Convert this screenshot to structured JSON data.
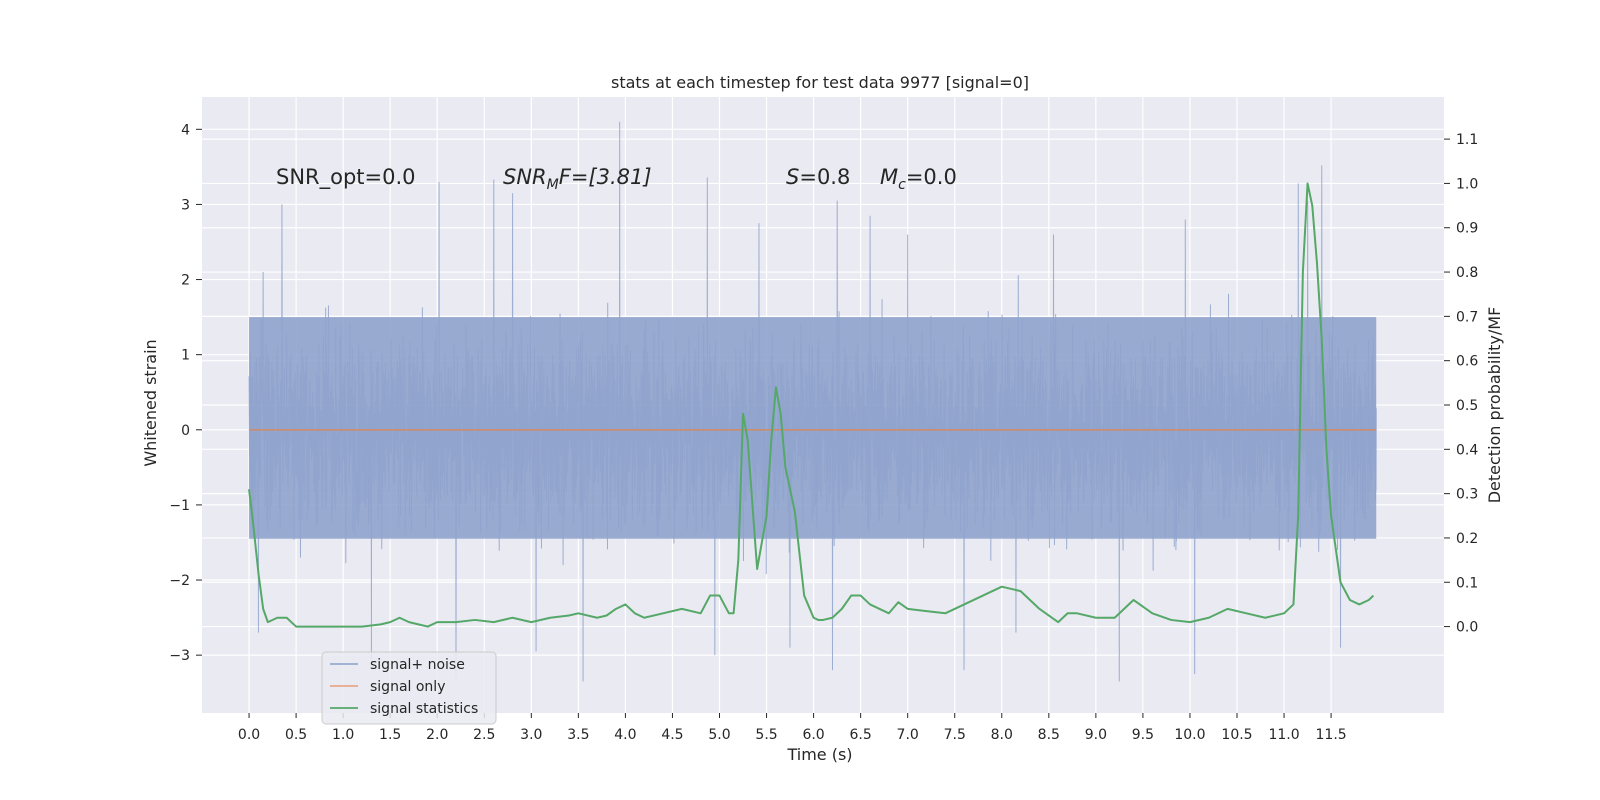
{
  "chart_data": {
    "type": "line",
    "title": "stats at each timestep for test data 9977 [signal=0]",
    "xlabel": "Time (s)",
    "ylabel": "Whitened strain",
    "y2label": "Detection probability/MF",
    "xlim": [
      -0.5,
      12.7
    ],
    "ylim": [
      -3.77,
      4.43
    ],
    "y2lim": [
      -0.195,
      1.195
    ],
    "grid": true,
    "xticks": [
      "0.0",
      "0.5",
      "1.0",
      "1.5",
      "2.0",
      "2.5",
      "3.0",
      "3.5",
      "4.0",
      "4.5",
      "5.0",
      "5.5",
      "6.0",
      "6.5",
      "7.0",
      "7.5",
      "8.0",
      "8.5",
      "9.0",
      "9.5",
      "10.0",
      "10.5",
      "11.0",
      "11.5"
    ],
    "yticks": [
      "4",
      "3",
      "2",
      "1",
      "0",
      "−1",
      "−2",
      "−3"
    ],
    "y2ticks": [
      "1.1",
      "1.0",
      "0.9",
      "0.8",
      "0.7",
      "0.6",
      "0.5",
      "0.4",
      "0.3",
      "0.2",
      "0.1",
      "0.0"
    ],
    "annotations": [
      {
        "id": "snr-opt",
        "text": "SNR_opt=0.0"
      },
      {
        "id": "snr-mf",
        "base": "SNR",
        "sub": "M",
        "rest": "F=[3.81]"
      },
      {
        "id": "s-stat",
        "base": "S",
        "rest": "=0.8"
      },
      {
        "id": "mc",
        "base": "M",
        "sub": "c",
        "rest": "=0.0"
      }
    ],
    "legend": {
      "position": "lower-left",
      "entries": [
        {
          "label": "signal+ noise",
          "color": "#97aad0"
        },
        {
          "label": "signal only",
          "color": "#e9a78a"
        },
        {
          "label": "signal statistics",
          "color": "#55a868"
        }
      ]
    },
    "series": [
      {
        "name": "signal+ noise",
        "color": "#8fa3cc",
        "description": "whitened noise, 12 s at dense sampling",
        "x_range": [
          0.0,
          11.98
        ],
        "core_band": [
          -1.45,
          1.5
        ],
        "min": -3.35,
        "max": 4.1,
        "spikes": [
          {
            "x": 3.94,
            "y": 4.1
          },
          {
            "x": 11.4,
            "y": 3.52
          },
          {
            "x": 2.6,
            "y": 3.33
          },
          {
            "x": 11.15,
            "y": 3.28
          },
          {
            "x": 4.87,
            "y": 3.36
          },
          {
            "x": 2.02,
            "y": 3.3
          },
          {
            "x": 0.35,
            "y": 3.0
          },
          {
            "x": 2.8,
            "y": 3.15
          },
          {
            "x": 11.25,
            "y": 3.05
          },
          {
            "x": 6.25,
            "y": 3.05
          },
          {
            "x": 6.6,
            "y": 2.85
          },
          {
            "x": 5.42,
            "y": 2.75
          },
          {
            "x": 7.0,
            "y": 2.6
          },
          {
            "x": 9.95,
            "y": 2.8
          },
          {
            "x": 8.55,
            "y": 2.6
          },
          {
            "x": 3.55,
            "y": -3.35
          },
          {
            "x": 10.05,
            "y": -3.25
          },
          {
            "x": 9.25,
            "y": -3.35
          },
          {
            "x": 1.3,
            "y": -3.05
          },
          {
            "x": 2.2,
            "y": -3.3
          },
          {
            "x": 6.2,
            "y": -3.2
          },
          {
            "x": 7.6,
            "y": -3.2
          },
          {
            "x": 11.6,
            "y": -2.9
          },
          {
            "x": 5.75,
            "y": -2.9
          },
          {
            "x": 4.95,
            "y": -3.0
          },
          {
            "x": 3.05,
            "y": -2.95
          },
          {
            "x": 8.15,
            "y": -2.7
          },
          {
            "x": 0.1,
            "y": -2.7
          },
          {
            "x": 0.15,
            "y": 2.1
          }
        ]
      },
      {
        "name": "signal only",
        "color": "#dd8452",
        "x": [
          0.0,
          11.98
        ],
        "y": [
          0.0,
          0.0
        ]
      },
      {
        "name": "signal statistics",
        "color": "#55a868",
        "axis": "right",
        "x": [
          0.0,
          0.05,
          0.1,
          0.15,
          0.2,
          0.3,
          0.4,
          0.5,
          0.6,
          0.8,
          1.0,
          1.2,
          1.4,
          1.5,
          1.6,
          1.7,
          1.8,
          1.9,
          2.0,
          2.2,
          2.4,
          2.6,
          2.8,
          3.0,
          3.2,
          3.4,
          3.5,
          3.7,
          3.8,
          3.9,
          4.0,
          4.1,
          4.2,
          4.4,
          4.6,
          4.8,
          4.9,
          5.0,
          5.1,
          5.15,
          5.2,
          5.25,
          5.3,
          5.4,
          5.5,
          5.55,
          5.6,
          5.65,
          5.7,
          5.8,
          5.9,
          6.0,
          6.05,
          6.1,
          6.2,
          6.3,
          6.4,
          6.5,
          6.6,
          6.8,
          6.9,
          7.0,
          7.2,
          7.4,
          7.6,
          7.8,
          8.0,
          8.2,
          8.4,
          8.6,
          8.7,
          8.8,
          9.0,
          9.2,
          9.4,
          9.6,
          9.8,
          10.0,
          10.2,
          10.4,
          10.6,
          10.8,
          11.0,
          11.1,
          11.15,
          11.2,
          11.25,
          11.3,
          11.35,
          11.4,
          11.45,
          11.5,
          11.6,
          11.7,
          11.8,
          11.9,
          11.95
        ],
        "y": [
          0.31,
          0.22,
          0.12,
          0.04,
          0.01,
          0.02,
          0.02,
          0.0,
          0.0,
          0.0,
          0.0,
          0.0,
          0.005,
          0.01,
          0.02,
          0.01,
          0.005,
          0.0,
          0.01,
          0.01,
          0.015,
          0.01,
          0.02,
          0.01,
          0.02,
          0.025,
          0.03,
          0.02,
          0.025,
          0.04,
          0.05,
          0.03,
          0.02,
          0.03,
          0.04,
          0.03,
          0.07,
          0.07,
          0.03,
          0.03,
          0.15,
          0.48,
          0.42,
          0.13,
          0.25,
          0.42,
          0.54,
          0.48,
          0.36,
          0.26,
          0.07,
          0.02,
          0.015,
          0.015,
          0.02,
          0.04,
          0.07,
          0.07,
          0.05,
          0.03,
          0.055,
          0.04,
          0.035,
          0.03,
          0.05,
          0.07,
          0.09,
          0.08,
          0.04,
          0.01,
          0.03,
          0.03,
          0.02,
          0.02,
          0.06,
          0.03,
          0.015,
          0.01,
          0.02,
          0.04,
          0.03,
          0.02,
          0.03,
          0.05,
          0.25,
          0.8,
          1.0,
          0.95,
          0.82,
          0.65,
          0.4,
          0.25,
          0.1,
          0.06,
          0.05,
          0.06,
          0.07
        ]
      }
    ]
  }
}
